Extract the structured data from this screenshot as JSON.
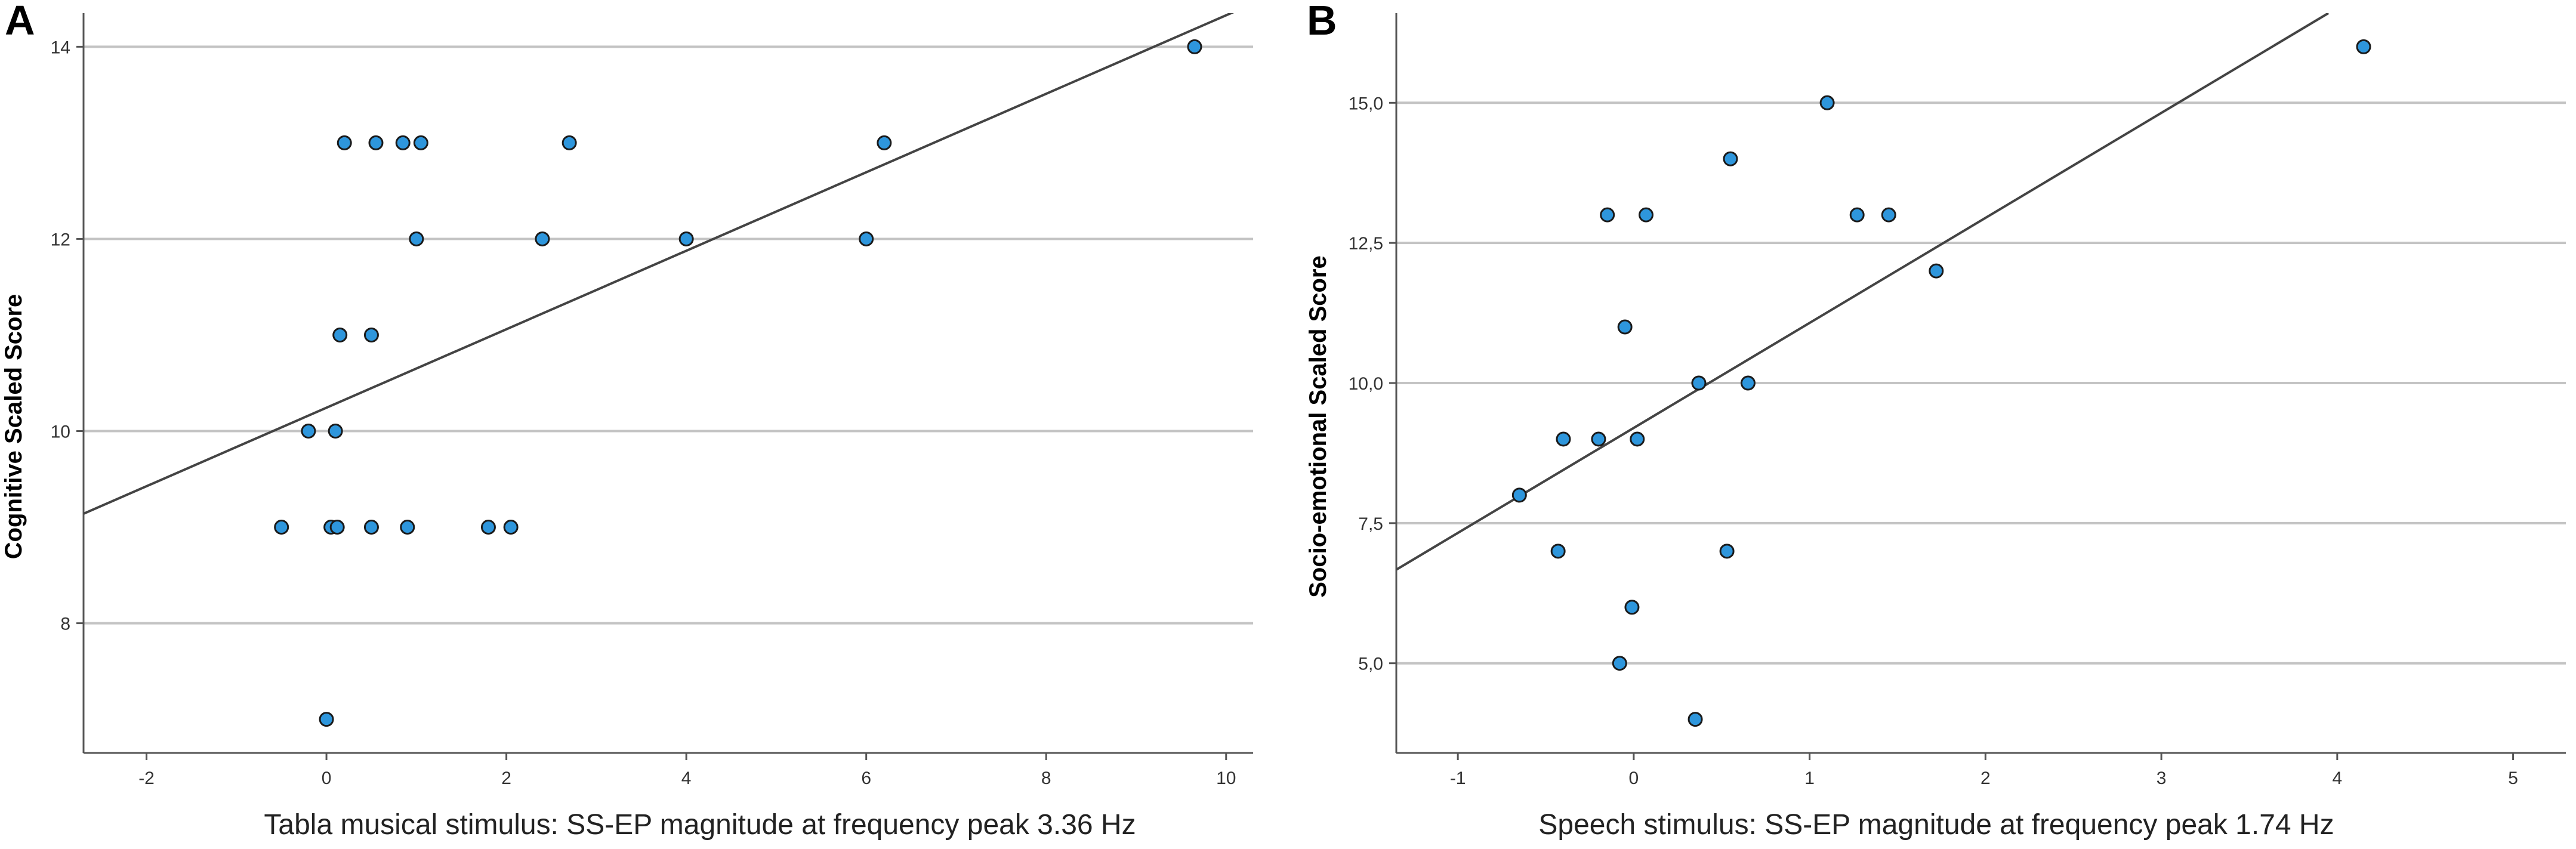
{
  "chart_data": [
    {
      "panel_label": "A",
      "type": "scatter",
      "title": "",
      "xlabel": "Tabla musical stimulus: SS-EP magnitude at frequency peak 3.36 Hz",
      "ylabel": "Cognitive Scaled Score",
      "xlim": [
        -2.7,
        10.3
      ],
      "ylim": [
        6.65,
        14.35
      ],
      "xticks": [
        -2,
        0,
        2,
        4,
        6,
        8,
        10
      ],
      "xtick_labels": [
        "-2",
        "0",
        "2",
        "4",
        "6",
        "8",
        "10"
      ],
      "yticks": [
        8,
        10,
        12,
        14
      ],
      "ytick_labels": [
        "8",
        "10",
        "12",
        "14"
      ],
      "grid": "horizontal",
      "fit_line": {
        "x": [
          -2.7,
          10.3
        ],
        "y": [
          9.14,
          14.45
        ]
      },
      "points": [
        {
          "x": 9.65,
          "y": 14
        },
        {
          "x": 0.2,
          "y": 13
        },
        {
          "x": 0.55,
          "y": 13
        },
        {
          "x": 0.85,
          "y": 13
        },
        {
          "x": 1.05,
          "y": 13
        },
        {
          "x": 2.7,
          "y": 13
        },
        {
          "x": 6.2,
          "y": 13
        },
        {
          "x": 1.0,
          "y": 12
        },
        {
          "x": 2.4,
          "y": 12
        },
        {
          "x": 4.0,
          "y": 12
        },
        {
          "x": 6.0,
          "y": 12
        },
        {
          "x": 0.15,
          "y": 11
        },
        {
          "x": 0.5,
          "y": 11
        },
        {
          "x": -0.2,
          "y": 10
        },
        {
          "x": 0.1,
          "y": 10
        },
        {
          "x": -0.5,
          "y": 9
        },
        {
          "x": 0.05,
          "y": 9
        },
        {
          "x": 0.12,
          "y": 9
        },
        {
          "x": 0.5,
          "y": 9
        },
        {
          "x": 0.9,
          "y": 9
        },
        {
          "x": 1.8,
          "y": 9
        },
        {
          "x": 2.05,
          "y": 9
        },
        {
          "x": 0.0,
          "y": 7
        }
      ]
    },
    {
      "panel_label": "B",
      "type": "scatter",
      "title": "",
      "xlabel": "Speech stimulus: SS-EP magnitude at frequency peak 1.74 Hz",
      "ylabel": "Socio-emotional Scaled Score",
      "xlim": [
        -1.35,
        5.3
      ],
      "ylim": [
        3.4,
        16.6
      ],
      "xticks": [
        -1,
        0,
        1,
        2,
        3,
        4,
        5
      ],
      "xtick_labels": [
        "-1",
        "0",
        "1",
        "2",
        "3",
        "4",
        "5"
      ],
      "yticks": [
        5,
        7.5,
        10,
        12.5,
        15
      ],
      "ytick_labels": [
        "5,0",
        "7,5",
        "10,0",
        "12,5",
        "15,0"
      ],
      "grid": "horizontal",
      "fit_line": {
        "x": [
          -1.35,
          3.95
        ],
        "y": [
          6.67,
          16.6
        ]
      },
      "points": [
        {
          "x": 4.15,
          "y": 16
        },
        {
          "x": 1.1,
          "y": 15
        },
        {
          "x": 0.55,
          "y": 14
        },
        {
          "x": -0.15,
          "y": 13
        },
        {
          "x": 0.07,
          "y": 13
        },
        {
          "x": 1.27,
          "y": 13
        },
        {
          "x": 1.45,
          "y": 13
        },
        {
          "x": 1.72,
          "y": 12
        },
        {
          "x": -0.05,
          "y": 11
        },
        {
          "x": 0.37,
          "y": 10
        },
        {
          "x": 0.65,
          "y": 10
        },
        {
          "x": -0.4,
          "y": 9
        },
        {
          "x": -0.2,
          "y": 9
        },
        {
          "x": 0.02,
          "y": 9
        },
        {
          "x": -0.65,
          "y": 8
        },
        {
          "x": -0.43,
          "y": 7
        },
        {
          "x": 0.53,
          "y": 7
        },
        {
          "x": -0.01,
          "y": 6
        },
        {
          "x": -0.08,
          "y": 5
        },
        {
          "x": 0.35,
          "y": 4
        }
      ]
    }
  ]
}
